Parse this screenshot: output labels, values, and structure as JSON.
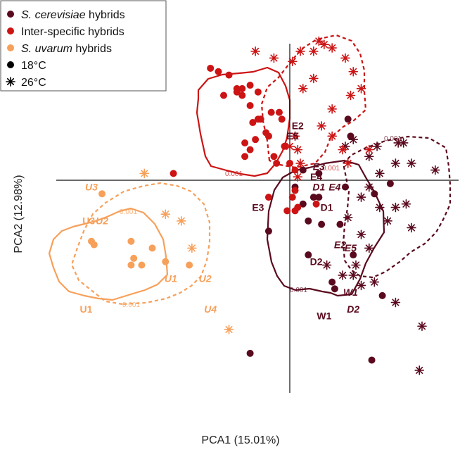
{
  "chart_data": {
    "type": "scatter",
    "title": "",
    "xlabel": "PCA1 (15.01%)",
    "ylabel": "PCA2 (12.98%)",
    "xlim": [
      -0.9,
      0.6
    ],
    "ylim": [
      -0.6,
      0.5
    ],
    "grid": false,
    "axes_cross_at_zero": true,
    "legend": {
      "placement": "top-left",
      "entries": [
        {
          "italic": "S. cerevisiae",
          "rest": " hybrids",
          "marker": "dot",
          "color": "#5a0a1e"
        },
        {
          "italic": "",
          "rest": "Inter-specific hybrids",
          "marker": "dot",
          "color": "#cc1414"
        },
        {
          "italic": "S. uvarum",
          "rest": " hybrids",
          "marker": "dot",
          "color": "#f7a05a"
        },
        {
          "italic": "",
          "rest": "18°C",
          "marker": "dot",
          "color": "#000000"
        },
        {
          "italic": "",
          "rest": "26°C",
          "marker": "star",
          "color": "#000000"
        }
      ]
    },
    "colors": {
      "cerevisiae": "#5a0a1e",
      "inter": "#cc1414",
      "uvarum": "#f7a05a",
      "legend_black": "#000000"
    },
    "series": [
      {
        "group": "cerevisiae",
        "temp": "18",
        "color": "#5a0a1e",
        "points": [
          [
            0.05,
            0.03
          ],
          [
            0.11,
            0.02
          ],
          [
            0.02,
            -0.02
          ],
          [
            0.11,
            -0.05
          ],
          [
            0.05,
            -0.07
          ],
          [
            0.09,
            -0.05
          ],
          [
            0.21,
            -0.02
          ],
          [
            -0.08,
            -0.15
          ],
          [
            0.07,
            -0.12
          ],
          [
            0.12,
            -0.13
          ],
          [
            0.19,
            -0.13
          ],
          [
            0.07,
            -0.22
          ],
          [
            0.24,
            -0.22
          ],
          [
            0.32,
            -0.04
          ],
          [
            0.38,
            -0.01
          ],
          [
            0.22,
            0.18
          ],
          [
            0.23,
            0.13
          ],
          [
            0.16,
            -0.3
          ],
          [
            0.17,
            -0.32
          ],
          [
            0.35,
            -0.34
          ],
          [
            -0.15,
            -0.51
          ],
          [
            0.31,
            -0.53
          ]
        ]
      },
      {
        "group": "cerevisiae",
        "temp": "26",
        "color": "#5a0a1e",
        "points": [
          [
            0.21,
            0.1
          ],
          [
            0.24,
            0.12
          ],
          [
            0.3,
            0.07
          ],
          [
            0.33,
            0.1
          ],
          [
            0.41,
            0.11
          ],
          [
            0.43,
            0.11
          ],
          [
            0.46,
            0.05
          ],
          [
            0.55,
            0.03
          ],
          [
            0.4,
            0.05
          ],
          [
            0.34,
            0.02
          ],
          [
            0.3,
            -0.02
          ],
          [
            0.27,
            -0.05
          ],
          [
            0.34,
            -0.08
          ],
          [
            0.4,
            -0.08
          ],
          [
            0.46,
            -0.14
          ],
          [
            0.44,
            -0.07
          ],
          [
            0.22,
            -0.11
          ],
          [
            0.37,
            -0.12
          ],
          [
            0.27,
            -0.16
          ],
          [
            0.3,
            -0.2
          ],
          [
            0.25,
            -0.25
          ],
          [
            0.14,
            -0.25
          ],
          [
            0.2,
            -0.28
          ],
          [
            0.24,
            -0.28
          ],
          [
            0.27,
            -0.31
          ],
          [
            0.32,
            -0.3
          ],
          [
            0.4,
            -0.36
          ],
          [
            0.5,
            -0.43
          ],
          [
            0.49,
            -0.56
          ]
        ]
      },
      {
        "group": "inter",
        "temp": "18",
        "color": "#cc1414",
        "points": [
          [
            -0.3,
            0.33
          ],
          [
            -0.27,
            0.32
          ],
          [
            -0.23,
            0.31
          ],
          [
            -0.18,
            0.27
          ],
          [
            -0.15,
            0.28
          ],
          [
            -0.2,
            0.27
          ],
          [
            -0.25,
            0.25
          ],
          [
            -0.2,
            0.26
          ],
          [
            -0.18,
            0.25
          ],
          [
            -0.12,
            0.26
          ],
          [
            -0.15,
            0.22
          ],
          [
            -0.11,
            0.18
          ],
          [
            -0.07,
            0.2
          ],
          [
            -0.12,
            0.18
          ],
          [
            -0.14,
            0.17
          ],
          [
            -0.09,
            0.14
          ],
          [
            -0.08,
            0.13
          ],
          [
            -0.13,
            0.12
          ],
          [
            -0.17,
            0.11
          ],
          [
            -0.15,
            0.09
          ],
          [
            -0.17,
            0.07
          ],
          [
            -0.06,
            0.07
          ],
          [
            -0.05,
            0.05
          ],
          [
            -0.04,
            0.2
          ],
          [
            -0.03,
            0.18
          ],
          [
            -0.02,
            0.1
          ],
          [
            0.0,
            0.05
          ],
          [
            0.02,
            0.03
          ],
          [
            0.02,
            -0.03
          ],
          [
            0.01,
            -0.05
          ],
          [
            0.03,
            -0.08
          ],
          [
            0.1,
            -0.07
          ],
          [
            -0.08,
            -0.05
          ],
          [
            -0.01,
            -0.09
          ],
          [
            0.02,
            -0.09
          ],
          [
            -0.44,
            0.02
          ]
        ]
      },
      {
        "group": "inter",
        "temp": "26",
        "color": "#cc1414",
        "points": [
          [
            -0.13,
            0.38
          ],
          [
            -0.06,
            0.36
          ],
          [
            0.01,
            0.35
          ],
          [
            0.04,
            0.38
          ],
          [
            0.09,
            0.38
          ],
          [
            0.11,
            0.41
          ],
          [
            0.13,
            0.4
          ],
          [
            0.16,
            0.39
          ],
          [
            0.21,
            0.36
          ],
          [
            0.24,
            0.32
          ],
          [
            0.23,
            0.25
          ],
          [
            0.16,
            0.21
          ],
          [
            0.09,
            0.3
          ],
          [
            0.05,
            0.27
          ],
          [
            0.12,
            0.16
          ],
          [
            0.16,
            0.13
          ],
          [
            0.2,
            0.09
          ],
          [
            0.22,
            0.05
          ],
          [
            0.27,
            0.27
          ],
          [
            0.3,
            0.09
          ],
          [
            0.02,
            0.13
          ],
          [
            0.03,
            0.09
          ],
          [
            0.0,
            0.1
          ],
          [
            0.04,
            0.05
          ],
          [
            0.03,
            0.01
          ]
        ]
      },
      {
        "group": "uvarum",
        "temp": "18",
        "color": "#f7a05a",
        "points": [
          [
            -0.71,
            -0.04
          ],
          [
            -0.75,
            -0.18
          ],
          [
            -0.74,
            -0.19
          ],
          [
            -0.6,
            -0.18
          ],
          [
            -0.6,
            -0.25
          ],
          [
            -0.59,
            -0.23
          ],
          [
            -0.56,
            -0.25
          ],
          [
            -0.52,
            -0.2
          ],
          [
            -0.47,
            -0.24
          ],
          [
            -0.38,
            -0.25
          ]
        ]
      },
      {
        "group": "uvarum",
        "temp": "26",
        "color": "#f7a05a",
        "points": [
          [
            -0.55,
            0.02
          ],
          [
            -0.47,
            -0.1
          ],
          [
            -0.41,
            -0.12
          ],
          [
            -0.37,
            -0.2
          ],
          [
            -0.23,
            -0.44
          ]
        ]
      }
    ],
    "contours": [
      {
        "group": "inter",
        "temp": "18",
        "style": "solid",
        "color": "#cc1414",
        "label": "0.001"
      },
      {
        "group": "inter",
        "temp": "26",
        "style": "dashed",
        "color": "#cc1414",
        "label": "0.001"
      },
      {
        "group": "cerevisiae",
        "temp": "18",
        "style": "solid",
        "color": "#5a0a1e",
        "label": "0.001"
      },
      {
        "group": "cerevisiae",
        "temp": "26",
        "style": "dashed",
        "color": "#5a0a1e",
        "label": "0.001"
      },
      {
        "group": "uvarum",
        "temp": "18",
        "style": "solid",
        "color": "#f7a05a",
        "label": "0.001"
      },
      {
        "group": "uvarum",
        "temp": "26",
        "style": "dashed",
        "color": "#f7a05a",
        "label": "0.001"
      }
    ],
    "annotations": [
      {
        "text": "E2",
        "x": 0.03,
        "y": 0.15,
        "italic": false,
        "color": "#5a0a1e"
      },
      {
        "text": "E5",
        "x": 0.01,
        "y": 0.12,
        "italic": false,
        "color": "#5a0a1e"
      },
      {
        "text": "E3",
        "x": 0.11,
        "y": 0.03,
        "italic": true,
        "color": "#5a0a1e"
      },
      {
        "text": "E4",
        "x": 0.1,
        "y": -0.0,
        "italic": false,
        "color": "#5a0a1e"
      },
      {
        "text": "D1",
        "x": 0.11,
        "y": -0.03,
        "italic": true,
        "color": "#5a0a1e"
      },
      {
        "text": "E4",
        "x": 0.17,
        "y": -0.03,
        "italic": true,
        "color": "#5a0a1e"
      },
      {
        "text": "D1",
        "x": 0.14,
        "y": -0.09,
        "italic": false,
        "color": "#5a0a1e"
      },
      {
        "text": "E3",
        "x": -0.12,
        "y": -0.09,
        "italic": false,
        "color": "#5a0a1e"
      },
      {
        "text": "E2",
        "x": 0.19,
        "y": -0.2,
        "italic": true,
        "color": "#5a0a1e"
      },
      {
        "text": "E5",
        "x": 0.23,
        "y": -0.21,
        "italic": true,
        "color": "#5a0a1e"
      },
      {
        "text": "D2",
        "x": 0.1,
        "y": -0.25,
        "italic": false,
        "color": "#5a0a1e"
      },
      {
        "text": "W1",
        "x": 0.23,
        "y": -0.34,
        "italic": true,
        "color": "#5a0a1e"
      },
      {
        "text": "D2",
        "x": 0.24,
        "y": -0.39,
        "italic": true,
        "color": "#5a0a1e"
      },
      {
        "text": "W1",
        "x": 0.13,
        "y": -0.41,
        "italic": false,
        "color": "#5a0a1e"
      },
      {
        "text": "U3",
        "x": -0.75,
        "y": -0.03,
        "italic": true,
        "color": "#f7a05a"
      },
      {
        "text": "U3",
        "x": -0.76,
        "y": -0.13,
        "italic": false,
        "color": "#f7a05a"
      },
      {
        "text": "U2",
        "x": -0.71,
        "y": -0.13,
        "italic": true,
        "color": "#f7a05a"
      },
      {
        "text": "U1",
        "x": -0.45,
        "y": -0.3,
        "italic": true,
        "color": "#f7a05a"
      },
      {
        "text": "U2",
        "x": -0.32,
        "y": -0.3,
        "italic": true,
        "color": "#f7a05a"
      },
      {
        "text": "U1",
        "x": -0.77,
        "y": -0.39,
        "italic": false,
        "color": "#f7a05a"
      },
      {
        "text": "U4",
        "x": -0.3,
        "y": -0.39,
        "italic": true,
        "color": "#f7a05a"
      }
    ]
  }
}
